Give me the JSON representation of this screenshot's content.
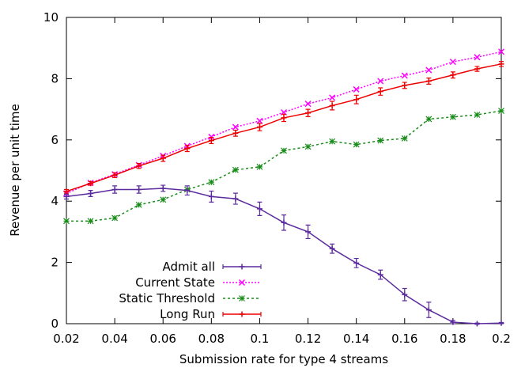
{
  "chart_data": {
    "type": "line",
    "title": "",
    "xlabel": "Submission rate for type 4 streams",
    "ylabel": "Revenue per unit time",
    "xlim": [
      0.02,
      0.2
    ],
    "ylim": [
      0,
      10
    ],
    "xticks": [
      0.02,
      0.04,
      0.06,
      0.08,
      0.1,
      0.12,
      0.14,
      0.16,
      0.18,
      0.2
    ],
    "xtick_labels": [
      "0.02",
      "0.04",
      "0.06",
      "0.08",
      "0.1",
      "0.12",
      "0.14",
      "0.16",
      "0.18",
      "0.2"
    ],
    "yticks": [
      0,
      2,
      4,
      6,
      8,
      10
    ],
    "ytick_labels": [
      "0",
      "2",
      "4",
      "6",
      "8",
      "10"
    ],
    "grid": false,
    "legend_position": "bottom-left",
    "x": [
      0.02,
      0.03,
      0.04,
      0.05,
      0.06,
      0.07,
      0.08,
      0.09,
      0.1,
      0.11,
      0.12,
      0.13,
      0.14,
      0.15,
      0.16,
      0.17,
      0.18,
      0.19,
      0.2
    ],
    "series": [
      {
        "name": "Admit all",
        "color": "#5b2a9e",
        "style": "solid",
        "marker": "plus",
        "values": [
          4.15,
          4.25,
          4.38,
          4.38,
          4.42,
          4.35,
          4.15,
          4.08,
          3.75,
          3.3,
          3.0,
          2.45,
          1.98,
          1.6,
          0.95,
          0.45,
          0.05,
          0.0,
          0.02
        ],
        "errors": [
          0.08,
          0.1,
          0.12,
          0.12,
          0.1,
          0.15,
          0.18,
          0.18,
          0.22,
          0.25,
          0.22,
          0.15,
          0.15,
          0.15,
          0.2,
          0.25,
          0.05,
          0.02,
          0.02
        ]
      },
      {
        "name": "Current State",
        "color": "#ff00ff",
        "style": "dotted",
        "marker": "x",
        "values": [
          4.25,
          4.6,
          4.88,
          5.18,
          5.48,
          5.8,
          6.1,
          6.42,
          6.62,
          6.9,
          7.18,
          7.38,
          7.65,
          7.92,
          8.1,
          8.28,
          8.55,
          8.7,
          8.88
        ],
        "errors": []
      },
      {
        "name": "Static Threshold",
        "color": "#1a8c1a",
        "style": "dashed",
        "marker": "star",
        "values": [
          3.35,
          3.35,
          3.45,
          3.88,
          4.05,
          4.38,
          4.62,
          5.02,
          5.12,
          5.65,
          5.78,
          5.95,
          5.85,
          5.98,
          6.05,
          6.68,
          6.75,
          6.82,
          6.95
        ],
        "errors": []
      },
      {
        "name": "Long Run",
        "color": "#ee0000",
        "style": "solid",
        "marker": "plus",
        "values": [
          4.32,
          4.58,
          4.85,
          5.15,
          5.4,
          5.72,
          5.98,
          6.22,
          6.42,
          6.72,
          6.88,
          7.12,
          7.32,
          7.58,
          7.78,
          7.92,
          8.12,
          8.32,
          8.48
        ],
        "errors": [
          0.06,
          0.06,
          0.08,
          0.08,
          0.1,
          0.1,
          0.1,
          0.1,
          0.12,
          0.12,
          0.12,
          0.14,
          0.14,
          0.12,
          0.1,
          0.1,
          0.1,
          0.08,
          0.08
        ]
      }
    ]
  }
}
